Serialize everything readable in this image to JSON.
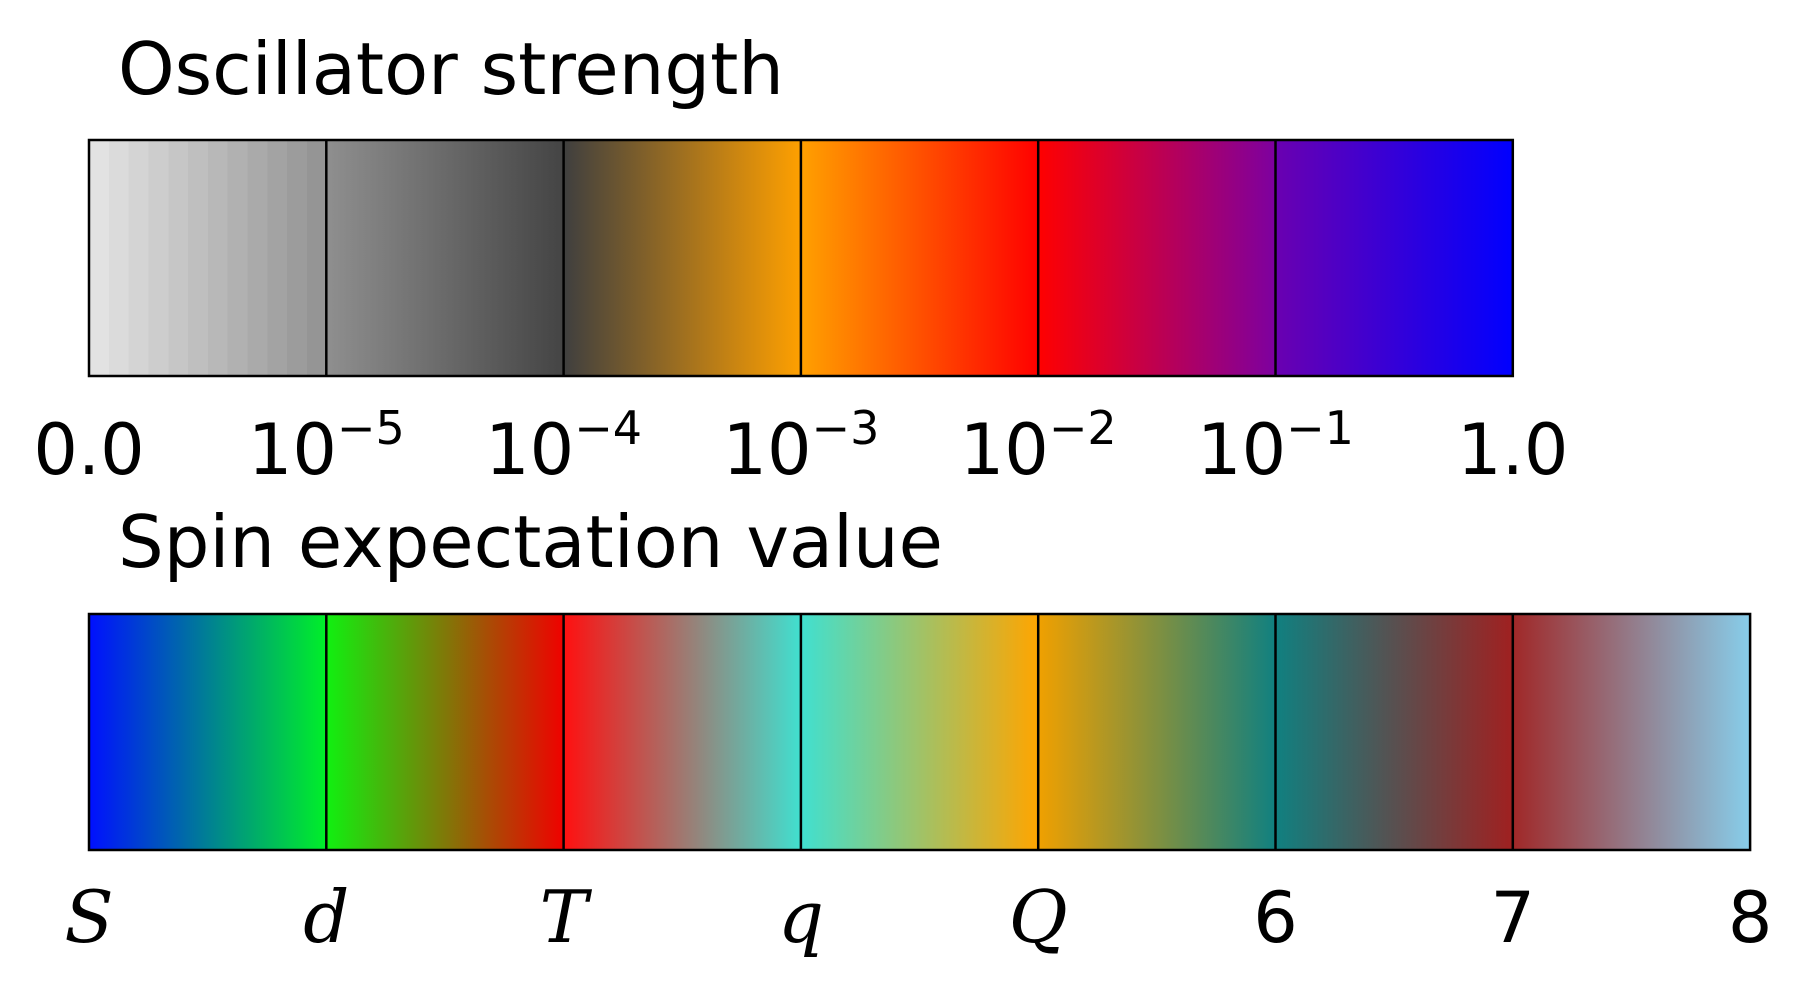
{
  "chart_data": [
    {
      "type": "colorbar",
      "title": "Oscillator strength",
      "tick_labels": [
        {
          "base": "0.0",
          "exp": ""
        },
        {
          "base": "10",
          "exp": "−5"
        },
        {
          "base": "10",
          "exp": "−4"
        },
        {
          "base": "10",
          "exp": "−3"
        },
        {
          "base": "10",
          "exp": "−2"
        },
        {
          "base": "10",
          "exp": "−1"
        },
        {
          "base": "1.0",
          "exp": ""
        }
      ],
      "segments": [
        {
          "from": "#e2e2e2",
          "to": "#959595",
          "banded": true
        },
        {
          "from": "#8f8f8f",
          "to": "#444444"
        },
        {
          "from": "#3f3f3f",
          "to": "#ffa000"
        },
        {
          "from": "#ffa000",
          "to": "#ff0000"
        },
        {
          "from": "#ff0000",
          "to": "#7d00a0"
        },
        {
          "from": "#6a00b0",
          "to": "#0000ff"
        }
      ],
      "scale": "log"
    },
    {
      "type": "colorbar",
      "title": "Spin expectation value",
      "tick_labels": [
        {
          "base": "S",
          "italic": true
        },
        {
          "base": "d",
          "italic": true
        },
        {
          "base": "T",
          "italic": true
        },
        {
          "base": "q",
          "italic": true
        },
        {
          "base": "Q",
          "italic": true
        },
        {
          "base": "6",
          "italic": false
        },
        {
          "base": "7",
          "italic": false
        },
        {
          "base": "8",
          "italic": false
        }
      ],
      "segments": [
        {
          "from": "#0010ff",
          "to": "#00f028"
        },
        {
          "from": "#10f010",
          "to": "#f00000"
        },
        {
          "from": "#ff1010",
          "to": "#40e0d0"
        },
        {
          "from": "#40e0d0",
          "to": "#ffa500"
        },
        {
          "from": "#f0a000",
          "to": "#108080"
        },
        {
          "from": "#108080",
          "to": "#a02020"
        },
        {
          "from": "#a02828",
          "to": "#87ceeb"
        }
      ]
    }
  ]
}
